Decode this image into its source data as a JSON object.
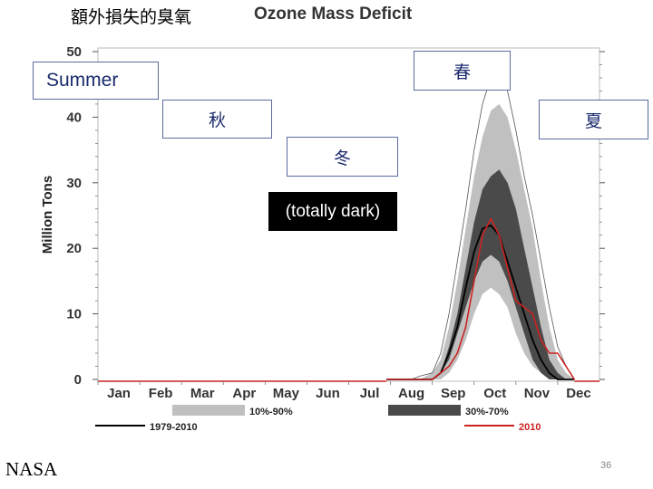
{
  "slide": {
    "title": "額外損失的臭氧",
    "source": "NASA",
    "page_number": "36"
  },
  "annotations": {
    "summer": "Summer",
    "spring": "春",
    "autumn": "秋",
    "summer_cjk": "夏",
    "winter": "冬",
    "dark": "(totally dark)"
  },
  "chart_data": {
    "type": "line",
    "title": "Ozone Mass Deficit",
    "ylabel": "Million Tons",
    "xlabel": "",
    "ylim": [
      0,
      50
    ],
    "yticks": [
      0,
      10,
      20,
      30,
      40,
      50
    ],
    "categories": [
      "Jan",
      "Feb",
      "Mar",
      "Apr",
      "May",
      "Jun",
      "Jul",
      "Aug",
      "Sep",
      "Oct",
      "Nov",
      "Dec"
    ],
    "xlim": [
      0,
      12
    ],
    "x": [
      6.9,
      7.2,
      7.5,
      7.7,
      8.0,
      8.2,
      8.4,
      8.6,
      8.8,
      9.0,
      9.2,
      9.4,
      9.6,
      9.8,
      10.0,
      10.2,
      10.4,
      10.6,
      10.8,
      11.0,
      11.2,
      11.4
    ],
    "bands": [
      {
        "name": "10%-90%",
        "color": "#c0c0c0",
        "lower": [
          0,
          0,
          0,
          0,
          0,
          0,
          1,
          3,
          6,
          10,
          13,
          14,
          13,
          11,
          7,
          4,
          2,
          1,
          0,
          0,
          0,
          0
        ],
        "upper": [
          0,
          0,
          0,
          0,
          1,
          3,
          8,
          15,
          23,
          31,
          37,
          41,
          42,
          40,
          35,
          29,
          23,
          15,
          8,
          3,
          1,
          0
        ]
      },
      {
        "name": "30%-70%",
        "color": "#4a4a4a",
        "lower": [
          0,
          0,
          0,
          0,
          0,
          1,
          3,
          7,
          11,
          15,
          18,
          19,
          18,
          15,
          11,
          7,
          3,
          1,
          0,
          0,
          0,
          0
        ],
        "upper": [
          0,
          0,
          0,
          0,
          0,
          1,
          5,
          10,
          17,
          24,
          29,
          31,
          32,
          30,
          26,
          20,
          14,
          8,
          3,
          1,
          0,
          0
        ]
      }
    ],
    "series": [
      {
        "name": "1979-2010",
        "color": "#000000",
        "values": [
          0,
          0,
          0,
          0,
          0,
          1,
          4,
          8,
          14,
          19.5,
          23,
          23.5,
          22,
          18,
          14,
          10,
          6,
          3,
          1,
          0,
          0,
          0
        ]
      },
      {
        "name": "2010",
        "color": "#cc2222",
        "values": [
          0,
          0,
          0,
          0,
          0,
          1,
          2,
          4,
          8,
          15,
          22,
          24.5,
          22,
          17,
          12,
          11,
          10,
          6,
          4,
          4,
          2,
          0
        ]
      }
    ],
    "max_envelope": {
      "color": "#555555",
      "values": [
        0,
        0,
        0,
        0.5,
        1,
        4,
        10,
        18,
        26,
        35,
        42,
        46,
        47,
        44,
        38,
        31,
        25,
        18,
        11,
        5,
        2,
        0
      ]
    },
    "legend": [
      "1979-2010",
      "10%-90%",
      "30%-70%",
      "2010"
    ],
    "legend_position": "bottom",
    "grid": false
  }
}
